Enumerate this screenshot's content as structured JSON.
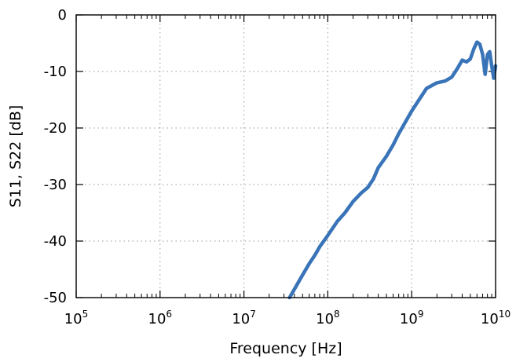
{
  "chart_data": {
    "type": "line",
    "xlabel": "Frequency [Hz]",
    "ylabel": "S11, S22 [dB]",
    "xscale": "log",
    "xlim": [
      100000,
      10000000000
    ],
    "ylim": [
      -50,
      0
    ],
    "grid": true,
    "x_ticks": [
      {
        "base": "10",
        "exp": "5",
        "value": 100000
      },
      {
        "base": "10",
        "exp": "6",
        "value": 1000000
      },
      {
        "base": "10",
        "exp": "7",
        "value": 10000000
      },
      {
        "base": "10",
        "exp": "8",
        "value": 100000000
      },
      {
        "base": "10",
        "exp": "9",
        "value": 1000000000
      },
      {
        "base": "10",
        "exp": "10",
        "value": 10000000000
      }
    ],
    "y_ticks": [
      "0",
      "-10",
      "-20",
      "-30",
      "-40",
      "-50"
    ],
    "series": [
      {
        "color": "#3a74b8",
        "x": [
          35000000,
          40000000,
          50000000,
          60000000,
          70000000,
          80000000,
          100000000,
          130000000,
          160000000,
          200000000,
          250000000,
          300000000,
          350000000,
          400000000,
          500000000,
          600000000,
          700000000,
          800000000,
          1000000000,
          1200000000,
          1500000000,
          2000000000,
          2500000000,
          3000000000,
          3500000000,
          4000000000,
          4500000000,
          5000000000,
          5500000000,
          6000000000,
          6500000000,
          7000000000,
          7500000000,
          8000000000,
          8500000000,
          9000000000,
          9500000000,
          10000000000
        ],
        "y": [
          -50,
          -48.5,
          -46,
          -44,
          -42.5,
          -41,
          -39,
          -36.5,
          -35,
          -33,
          -31.5,
          -30.5,
          -29,
          -27,
          -25,
          -23,
          -21,
          -19.5,
          -17,
          -15.2,
          -13,
          -12,
          -11.7,
          -11,
          -9.5,
          -8,
          -8.3,
          -7.8,
          -6,
          -4.8,
          -5.2,
          -7,
          -10.5,
          -7,
          -6.5,
          -9,
          -11.2,
          -9
        ]
      }
    ]
  }
}
